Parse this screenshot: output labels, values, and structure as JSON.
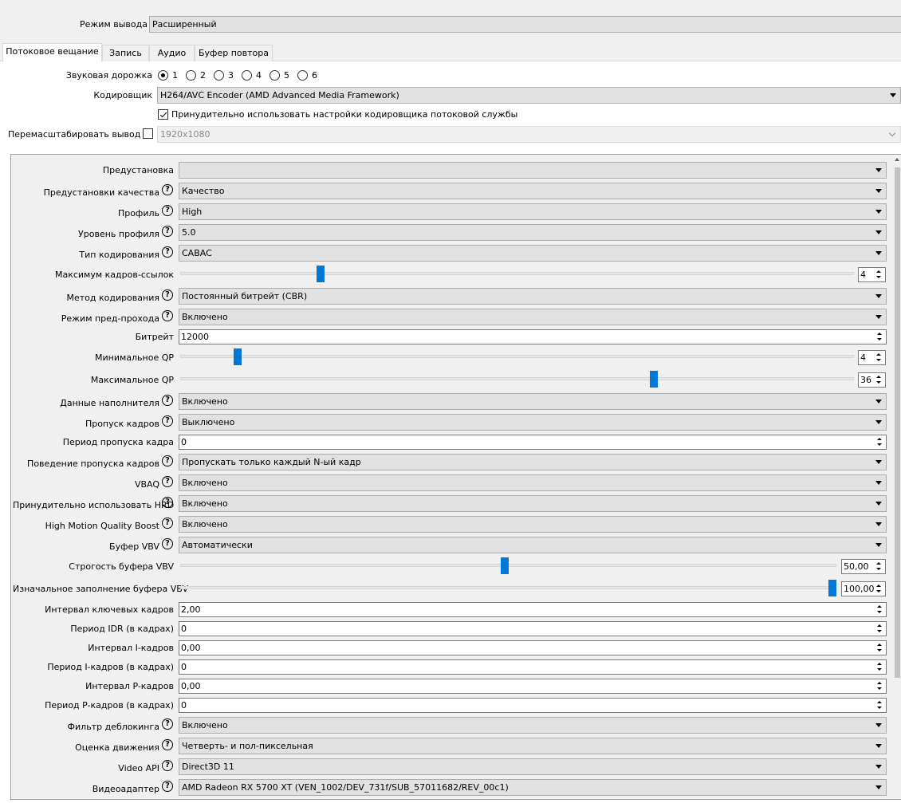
{
  "output_mode": {
    "label": "Режим вывода",
    "value": "Расширенный"
  },
  "tabs": [
    {
      "label": "Потоковое вещание",
      "active": true
    },
    {
      "label": "Запись",
      "active": false
    },
    {
      "label": "Аудио",
      "active": false
    },
    {
      "label": "Буфер повтора",
      "active": false
    }
  ],
  "audio_track": {
    "label": "Звуковая дорожка",
    "options": [
      "1",
      "2",
      "3",
      "4",
      "5",
      "6"
    ],
    "selected": "1"
  },
  "encoder": {
    "label": "Кодировщик",
    "value": "H264/AVC Encoder (AMD Advanced Media Framework)"
  },
  "enforce": {
    "label": "Принудительно использовать настройки кодировщика потоковой службы",
    "checked": true
  },
  "rescale": {
    "label": "Перемасштабировать вывод",
    "checked": false,
    "value": "1920x1080"
  },
  "settings": {
    "preset": {
      "label": "Предустановка",
      "value": ""
    },
    "quality_preset": {
      "label": "Предустановки качества",
      "value": "Качество"
    },
    "profile": {
      "label": "Профиль",
      "value": "High"
    },
    "profile_level": {
      "label": "Уровень профиля",
      "value": "5.0"
    },
    "coding_type": {
      "label": "Тип кодирования",
      "value": "CABAC"
    },
    "max_ref_frames": {
      "label": "Максимум кадров-ссылок",
      "value": "4"
    },
    "rate_control": {
      "label": "Метод кодирования",
      "value": "Постоянный битрейт (CBR)"
    },
    "pre_pass": {
      "label": "Режим пред-прохода",
      "value": "Включено"
    },
    "bitrate": {
      "label": "Битрейт",
      "value": "12000"
    },
    "min_qp": {
      "label": "Минимальное QP",
      "value": "4"
    },
    "max_qp": {
      "label": "Максимальное QP",
      "value": "36"
    },
    "filler_data": {
      "label": "Данные наполнителя",
      "value": "Включено"
    },
    "frame_skip": {
      "label": "Пропуск кадров",
      "value": "Выключено"
    },
    "frame_skip_period": {
      "label": "Период пропуска кадра",
      "value": "0"
    },
    "frame_skip_behavior": {
      "label": "Поведение пропуска кадров",
      "value": "Пропускать только каждый N-ый кадр"
    },
    "vbaq": {
      "label": "VBAQ",
      "value": "Включено"
    },
    "enforce_hrd": {
      "label": "Принудительно использовать HRD",
      "value": "Включено"
    },
    "hmqb": {
      "label": "High Motion Quality Boost",
      "value": "Включено"
    },
    "vbv_buffer": {
      "label": "Буфер VBV",
      "value": "Автоматически"
    },
    "vbv_strictness": {
      "label": "Строгость буфера VBV",
      "value": "50,00"
    },
    "vbv_initial_fullness": {
      "label": "Изначальное заполнение буфера VBV",
      "value": "100,00"
    },
    "keyframe_interval": {
      "label": "Интервал ключевых кадров",
      "value": "2,00"
    },
    "idr_period": {
      "label": "Период IDR (в кадрах)",
      "value": "0"
    },
    "i_interval": {
      "label": "Интервал I-кадров",
      "value": "0,00"
    },
    "i_period": {
      "label": "Период I-кадров (в кадрах)",
      "value": "0"
    },
    "p_interval": {
      "label": "Интервал P-кадров",
      "value": "0,00"
    },
    "p_period": {
      "label": "Период P-кадров (в кадрах)",
      "value": "0"
    },
    "deblocking": {
      "label": "Фильтр деблокинга",
      "value": "Включено"
    },
    "motion_estimation": {
      "label": "Оценка движения",
      "value": "Четверть- и пол-пиксельная"
    },
    "video_api": {
      "label": "Video API",
      "value": "Direct3D 11"
    },
    "video_adapter": {
      "label": "Видеоадаптер",
      "value": "AMD Radeon RX 5700 XT (VEN_1002/DEV_731f/SUB_57011682/REV_00c1)"
    }
  },
  "slider_levels": {
    "max_ref_frames": 0.205,
    "min_qp": 0.08,
    "max_qp": 0.705,
    "vbv_strictness": 0.495,
    "vbv_initial_fullness": 1.0
  }
}
